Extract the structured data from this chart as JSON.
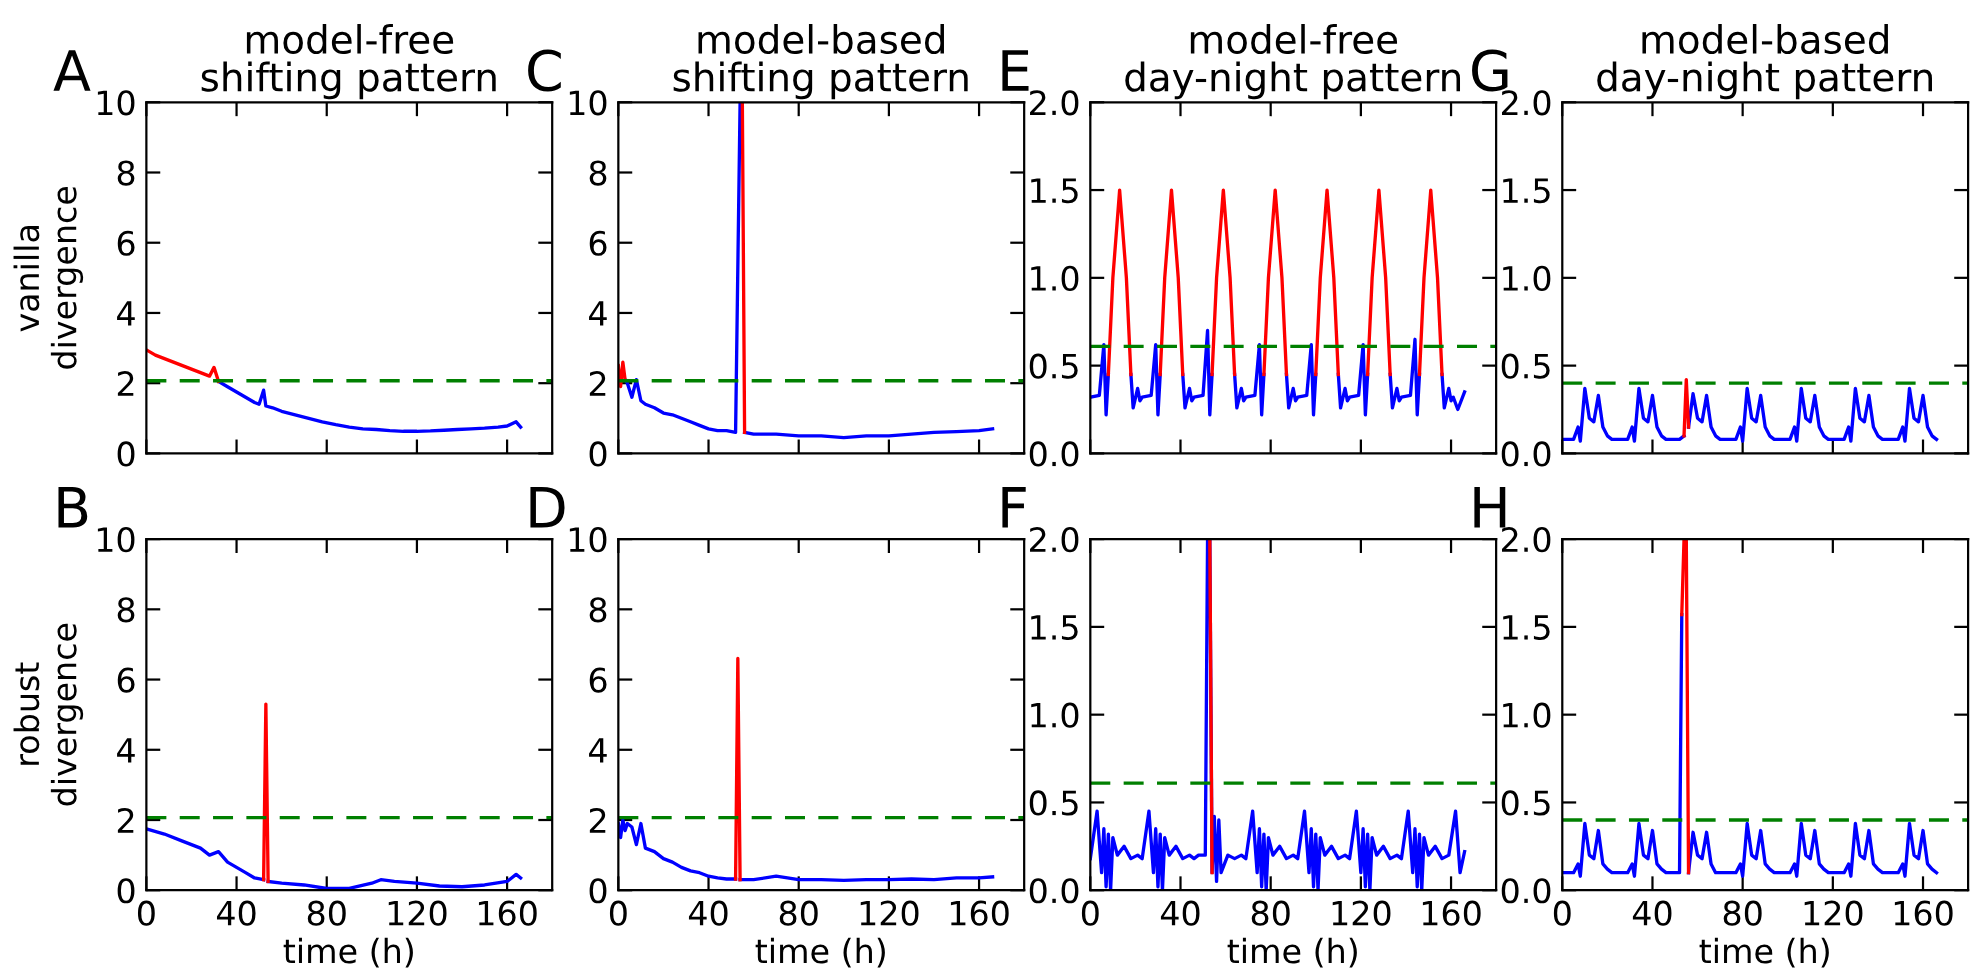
{
  "chart_data": [
    {
      "type": "line",
      "title": "model-free\nshifting pattern",
      "ylabel": "vanilla\ndivergence",
      "annotations": [
        "A"
      ],
      "xlim": [
        0,
        180
      ],
      "xticks": [
        0,
        40,
        80,
        120,
        160
      ],
      "ylim": [
        0,
        10
      ],
      "yticks": [
        0,
        2,
        4,
        6,
        8,
        10
      ],
      "tick_labels": "y",
      "ref_lines": [
        {
          "axis": "y",
          "value": 2.07,
          "color": "#008000",
          "line_style": "dashed"
        }
      ],
      "x": [
        0,
        4,
        8,
        12,
        16,
        20,
        24,
        28,
        30,
        32,
        36,
        40,
        44,
        48,
        50,
        52,
        53,
        56,
        60,
        66,
        72,
        78,
        84,
        90,
        96,
        102,
        108,
        114,
        120,
        126,
        132,
        138,
        144,
        150,
        156,
        160,
        164,
        166
      ],
      "series": [
        {
          "color": "#0000ff",
          "values": [
            null,
            null,
            null,
            null,
            null,
            null,
            null,
            null,
            null,
            2.05,
            1.9,
            1.75,
            1.6,
            1.45,
            1.4,
            1.8,
            1.35,
            1.3,
            1.2,
            1.1,
            1.0,
            0.9,
            0.82,
            0.75,
            0.7,
            0.68,
            0.65,
            0.63,
            0.63,
            0.64,
            0.66,
            0.68,
            0.7,
            0.72,
            0.75,
            0.78,
            0.9,
            0.75
          ]
        },
        {
          "color": "#ff0000",
          "values": [
            2.95,
            2.8,
            2.7,
            2.6,
            2.5,
            2.4,
            2.3,
            2.2,
            2.45,
            2.05,
            null,
            null,
            null,
            null,
            null,
            null,
            null,
            null,
            null,
            null,
            null,
            null,
            null,
            null,
            null,
            null,
            null,
            null,
            null,
            null,
            null,
            null,
            null,
            null,
            null,
            null,
            null,
            null
          ]
        }
      ]
    },
    {
      "type": "line",
      "title": "model-based\nshifting pattern",
      "annotations": [
        "C"
      ],
      "xlim": [
        0,
        180
      ],
      "xticks": [
        0,
        40,
        80,
        120,
        160
      ],
      "ylim": [
        0,
        10
      ],
      "yticks": [
        0,
        2,
        4,
        6,
        8,
        10
      ],
      "tick_labels": "y",
      "ref_lines": [
        {
          "axis": "y",
          "value": 2.07,
          "color": "#008000",
          "line_style": "dashed"
        }
      ],
      "x": [
        0,
        1,
        2,
        3,
        4,
        6,
        8,
        10,
        12,
        16,
        20,
        24,
        28,
        32,
        36,
        40,
        44,
        48,
        52,
        54,
        55,
        56,
        60,
        70,
        80,
        90,
        100,
        110,
        120,
        130,
        140,
        150,
        160,
        166
      ],
      "series": [
        {
          "color": "#0000ff",
          "values": [
            null,
            null,
            null,
            2.1,
            2.0,
            1.6,
            2.1,
            1.5,
            1.4,
            1.3,
            1.15,
            1.1,
            1.0,
            0.9,
            0.8,
            0.7,
            0.65,
            0.65,
            0.6,
            10,
            null,
            0.6,
            0.55,
            0.55,
            0.5,
            0.5,
            0.45,
            0.5,
            0.5,
            0.55,
            0.6,
            0.62,
            0.65,
            0.7
          ]
        },
        {
          "color": "#ff0000",
          "values": [
            2.5,
            1.9,
            2.6,
            2.1,
            null,
            null,
            null,
            null,
            null,
            null,
            null,
            null,
            null,
            null,
            null,
            null,
            null,
            null,
            null,
            null,
            10,
            0.6,
            null,
            null,
            null,
            null,
            null,
            null,
            null,
            null,
            null,
            null,
            null,
            null
          ]
        }
      ]
    },
    {
      "type": "line",
      "title": "model-free\nday-night pattern",
      "annotations": [
        "E"
      ],
      "xlim": [
        0,
        180
      ],
      "xticks": [
        0,
        40,
        80,
        120,
        160
      ],
      "ylim": [
        0,
        2
      ],
      "yticks": [
        {
          "value": 0,
          "label": "0.0"
        },
        {
          "value": 0.5,
          "label": "0.5"
        },
        {
          "value": 1,
          "label": "1.0"
        },
        {
          "value": 1.5,
          "label": "1.5"
        },
        {
          "value": 2,
          "label": "2.0"
        }
      ],
      "tick_labels": "y",
      "ref_lines": [
        {
          "axis": "y",
          "value": 0.61,
          "color": "#008000",
          "line_style": "dashed"
        }
      ],
      "x": [
        0,
        4,
        6,
        7,
        8,
        10,
        13,
        16,
        18,
        19,
        21,
        22,
        23,
        27,
        29,
        30,
        31,
        33,
        36,
        39,
        41,
        42,
        44,
        45,
        46,
        50,
        52,
        53,
        54,
        56,
        59,
        62,
        64,
        65,
        67,
        68,
        69,
        73,
        75,
        76,
        77,
        79,
        82,
        85,
        87,
        88,
        90,
        91,
        92,
        96,
        98,
        99,
        100,
        102,
        105,
        108,
        110,
        111,
        113,
        114,
        115,
        119,
        121,
        122,
        123,
        125,
        128,
        131,
        133,
        134,
        136,
        137,
        138,
        142,
        144,
        145,
        146,
        148,
        151,
        154,
        156,
        157,
        159,
        160,
        161,
        163,
        166
      ],
      "series": [
        {
          "color": "#0000ff",
          "values": [
            0.32,
            0.33,
            0.62,
            0.22,
            0.45,
            null,
            null,
            null,
            0.45,
            0.26,
            0.37,
            0.3,
            0.32,
            0.33,
            0.62,
            0.22,
            0.45,
            null,
            null,
            null,
            0.45,
            0.26,
            0.37,
            0.3,
            0.32,
            0.33,
            0.7,
            0.22,
            0.45,
            null,
            null,
            null,
            0.45,
            0.26,
            0.37,
            0.3,
            0.32,
            0.33,
            0.62,
            0.22,
            0.45,
            null,
            null,
            null,
            0.45,
            0.26,
            0.37,
            0.3,
            0.32,
            0.33,
            0.62,
            0.22,
            0.45,
            null,
            null,
            null,
            0.45,
            0.26,
            0.37,
            0.3,
            0.32,
            0.33,
            0.62,
            0.22,
            0.45,
            null,
            null,
            null,
            0.45,
            0.26,
            0.37,
            0.3,
            0.32,
            0.33,
            0.65,
            0.22,
            0.45,
            null,
            null,
            null,
            0.45,
            0.26,
            0.37,
            0.3,
            0.32,
            0.25,
            0.35
          ]
        },
        {
          "color": "#ff0000",
          "values": [
            null,
            null,
            null,
            null,
            0.45,
            1.0,
            1.5,
            1.0,
            0.45,
            null,
            null,
            null,
            null,
            null,
            null,
            null,
            0.45,
            1.0,
            1.5,
            1.0,
            0.45,
            null,
            null,
            null,
            null,
            null,
            null,
            null,
            0.45,
            1.0,
            1.5,
            1.0,
            0.45,
            null,
            null,
            null,
            null,
            null,
            null,
            null,
            0.45,
            1.0,
            1.5,
            1.0,
            0.45,
            null,
            null,
            null,
            null,
            null,
            null,
            null,
            0.45,
            1.0,
            1.5,
            1.0,
            0.45,
            null,
            null,
            null,
            null,
            null,
            null,
            null,
            0.45,
            1.0,
            1.5,
            1.0,
            0.45,
            null,
            null,
            null,
            null,
            null,
            null,
            null,
            0.45,
            1.0,
            1.5,
            1.0,
            0.45,
            null,
            null,
            null,
            null,
            null,
            null
          ]
        }
      ]
    },
    {
      "type": "line",
      "title": "model-based\nday-night pattern",
      "annotations": [
        "G"
      ],
      "xlim": [
        0,
        180
      ],
      "xticks": [
        0,
        40,
        80,
        120,
        160
      ],
      "ylim": [
        0,
        2
      ],
      "yticks": [
        {
          "value": 0,
          "label": "0.0"
        },
        {
          "value": 0.5,
          "label": "0.5"
        },
        {
          "value": 1,
          "label": "1.0"
        },
        {
          "value": 1.5,
          "label": "1.5"
        },
        {
          "value": 2,
          "label": "2.0"
        }
      ],
      "tick_labels": "y",
      "ref_lines": [
        {
          "axis": "y",
          "value": 0.4,
          "color": "#008000",
          "line_style": "dashed"
        }
      ],
      "x": [
        0,
        5,
        7,
        8,
        10,
        12,
        14,
        16,
        18,
        20,
        22,
        24,
        29,
        31,
        32,
        34,
        36,
        38,
        40,
        42,
        44,
        46,
        48,
        52,
        54,
        55,
        56,
        58,
        60,
        62,
        64,
        66,
        68,
        70,
        72,
        77,
        79,
        80,
        82,
        84,
        86,
        88,
        90,
        92,
        94,
        96,
        101,
        103,
        104,
        106,
        108,
        110,
        112,
        114,
        116,
        118,
        120,
        125,
        127,
        128,
        130,
        132,
        134,
        136,
        138,
        140,
        142,
        144,
        149,
        151,
        152,
        154,
        156,
        158,
        160,
        162,
        164,
        166
      ],
      "series": [
        {
          "color": "#0000ff",
          "values": [
            0.08,
            0.08,
            0.15,
            0.07,
            0.37,
            0.2,
            0.18,
            0.33,
            0.15,
            0.1,
            0.08,
            0.08,
            0.08,
            0.15,
            0.07,
            0.37,
            0.2,
            0.18,
            0.33,
            0.15,
            0.1,
            0.08,
            0.08,
            0.08,
            0.1,
            null,
            0.15,
            0.34,
            0.2,
            0.18,
            0.33,
            0.15,
            0.1,
            0.08,
            0.08,
            0.08,
            0.15,
            0.07,
            0.37,
            0.2,
            0.18,
            0.33,
            0.15,
            0.1,
            0.08,
            0.08,
            0.08,
            0.15,
            0.07,
            0.37,
            0.2,
            0.18,
            0.33,
            0.15,
            0.1,
            0.08,
            0.08,
            0.08,
            0.15,
            0.07,
            0.37,
            0.2,
            0.18,
            0.33,
            0.15,
            0.1,
            0.08,
            0.08,
            0.08,
            0.15,
            0.07,
            0.37,
            0.2,
            0.18,
            0.33,
            0.15,
            0.1,
            0.08
          ]
        },
        {
          "color": "#ff0000",
          "values": [
            null,
            null,
            null,
            null,
            null,
            null,
            null,
            null,
            null,
            null,
            null,
            null,
            null,
            null,
            null,
            null,
            null,
            null,
            null,
            null,
            null,
            null,
            null,
            null,
            0.1,
            0.42,
            0.15,
            null,
            null,
            null,
            null,
            null,
            null,
            null,
            null,
            null,
            null,
            null,
            null,
            null,
            null,
            null,
            null,
            null,
            null,
            null,
            null,
            null,
            null,
            null,
            null,
            null,
            null,
            null,
            null,
            null,
            null,
            null,
            null,
            null,
            null,
            null,
            null,
            null,
            null,
            null,
            null,
            null,
            null,
            null,
            null,
            null,
            null,
            null,
            null,
            null,
            null,
            null
          ]
        }
      ]
    },
    {
      "type": "line",
      "ylabel": "robust\ndivergence",
      "xlabel": "time (h)",
      "annotations": [
        "B"
      ],
      "xlim": [
        0,
        180
      ],
      "xticks": [
        0,
        40,
        80,
        120,
        160
      ],
      "ylim": [
        0,
        10
      ],
      "yticks": [
        0,
        2,
        4,
        6,
        8,
        10
      ],
      "ref_lines": [
        {
          "axis": "y",
          "value": 2.07,
          "color": "#008000",
          "line_style": "dashed"
        }
      ],
      "x": [
        0,
        8,
        16,
        20,
        24,
        28,
        32,
        36,
        40,
        44,
        48,
        52,
        53,
        54,
        60,
        70,
        80,
        90,
        100,
        104,
        110,
        120,
        130,
        140,
        150,
        160,
        164,
        166
      ],
      "series": [
        {
          "color": "#0000ff",
          "values": [
            1.75,
            1.6,
            1.4,
            1.3,
            1.2,
            1.0,
            1.1,
            0.8,
            0.65,
            0.5,
            0.35,
            0.3,
            null,
            0.25,
            0.2,
            0.15,
            0.05,
            0.05,
            0.2,
            0.3,
            0.25,
            0.2,
            0.12,
            0.1,
            0.15,
            0.25,
            0.45,
            0.35
          ]
        },
        {
          "color": "#ff0000",
          "values": [
            null,
            null,
            null,
            null,
            null,
            null,
            null,
            null,
            null,
            null,
            null,
            0.3,
            5.3,
            0.25,
            null,
            null,
            null,
            null,
            null,
            null,
            null,
            null,
            null,
            null,
            null,
            null,
            null,
            null
          ]
        }
      ]
    },
    {
      "type": "line",
      "xlabel": "time (h)",
      "annotations": [
        "D"
      ],
      "xlim": [
        0,
        180
      ],
      "xticks": [
        0,
        40,
        80,
        120,
        160
      ],
      "ylim": [
        0,
        10
      ],
      "yticks": [
        0,
        2,
        4,
        6,
        8,
        10
      ],
      "ref_lines": [
        {
          "axis": "y",
          "value": 2.07,
          "color": "#008000",
          "line_style": "dashed"
        }
      ],
      "x": [
        0,
        1,
        2,
        3,
        4,
        6,
        8,
        10,
        12,
        16,
        20,
        24,
        28,
        32,
        36,
        40,
        44,
        48,
        52,
        53,
        54,
        60,
        70,
        80,
        90,
        100,
        110,
        120,
        130,
        140,
        150,
        160,
        166
      ],
      "series": [
        {
          "color": "#0000ff",
          "values": [
            1.9,
            1.5,
            2.0,
            1.7,
            1.9,
            1.8,
            1.3,
            1.9,
            1.2,
            1.1,
            0.9,
            0.8,
            0.65,
            0.55,
            0.5,
            0.4,
            0.35,
            0.32,
            0.32,
            null,
            0.3,
            0.3,
            0.4,
            0.3,
            0.3,
            0.28,
            0.3,
            0.3,
            0.32,
            0.3,
            0.35,
            0.35,
            0.38
          ]
        },
        {
          "color": "#ff0000",
          "values": [
            null,
            null,
            null,
            null,
            null,
            null,
            null,
            null,
            null,
            null,
            null,
            null,
            null,
            null,
            null,
            null,
            null,
            null,
            0.32,
            6.6,
            0.3,
            null,
            null,
            null,
            null,
            null,
            null,
            null,
            null,
            null,
            null,
            null,
            null
          ]
        }
      ]
    },
    {
      "type": "line",
      "xlabel": "time (h)",
      "annotations": [
        "F"
      ],
      "xlim": [
        0,
        180
      ],
      "xticks": [
        0,
        40,
        80,
        120,
        160
      ],
      "ylim": [
        0,
        2
      ],
      "yticks": [
        {
          "value": 0,
          "label": "0.0"
        },
        {
          "value": 0.5,
          "label": "0.5"
        },
        {
          "value": 1,
          "label": "1.0"
        },
        {
          "value": 1.5,
          "label": "1.5"
        },
        {
          "value": 2,
          "label": "2.0"
        }
      ],
      "ref_lines": [
        {
          "axis": "y",
          "value": 0.61,
          "color": "#008000",
          "line_style": "dashed"
        }
      ],
      "x": [
        0,
        3,
        5,
        6,
        7,
        8,
        9,
        10,
        12,
        15,
        18,
        21,
        23,
        26,
        28,
        29,
        30,
        31,
        32,
        33,
        35,
        38,
        41,
        44,
        46,
        48,
        51,
        52,
        53,
        54,
        55,
        56,
        57,
        58,
        61,
        64,
        67,
        69,
        72,
        74,
        75,
        76,
        77,
        78,
        79,
        81,
        84,
        87,
        90,
        92,
        95,
        97,
        98,
        99,
        100,
        101,
        102,
        104,
        107,
        110,
        113,
        115,
        118,
        120,
        121,
        122,
        123,
        124,
        125,
        127,
        130,
        133,
        136,
        138,
        141,
        143,
        144,
        145,
        146,
        147,
        148,
        150,
        153,
        156,
        159,
        162,
        164,
        166
      ],
      "series": [
        {
          "color": "#0000ff",
          "values": [
            0.18,
            0.45,
            0.1,
            0.35,
            0.02,
            0.32,
            0.0,
            0.3,
            0.2,
            0.25,
            0.18,
            0.2,
            0.18,
            0.45,
            0.1,
            0.35,
            0.02,
            0.32,
            0.0,
            0.3,
            0.2,
            0.25,
            0.18,
            0.2,
            0.18,
            0.2,
            0.2,
            2.0,
            2.0,
            0.1,
            0.42,
            0.05,
            0.4,
            0.1,
            0.2,
            0.18,
            0.2,
            0.18,
            0.45,
            0.1,
            0.35,
            0.02,
            0.32,
            0.0,
            0.3,
            0.2,
            0.25,
            0.18,
            0.2,
            0.18,
            0.45,
            0.1,
            0.35,
            0.02,
            0.32,
            0.0,
            0.3,
            0.2,
            0.25,
            0.18,
            0.2,
            0.18,
            0.45,
            0.1,
            0.35,
            0.02,
            0.32,
            0.0,
            0.3,
            0.2,
            0.25,
            0.18,
            0.2,
            0.18,
            0.45,
            0.1,
            0.35,
            0.02,
            0.32,
            0.0,
            0.3,
            0.2,
            0.25,
            0.18,
            0.2,
            0.45,
            0.1,
            0.22
          ]
        },
        {
          "color": "#ff0000",
          "values": [
            null,
            null,
            null,
            null,
            null,
            null,
            null,
            null,
            null,
            null,
            null,
            null,
            null,
            null,
            null,
            null,
            null,
            null,
            null,
            null,
            null,
            null,
            null,
            null,
            null,
            null,
            null,
            null,
            2.0,
            0.1,
            null,
            null,
            null,
            null,
            null,
            null,
            null,
            null,
            null,
            null,
            null,
            null,
            null,
            null,
            null,
            null,
            null,
            null,
            null,
            null,
            null,
            null,
            null,
            null,
            null,
            null,
            null,
            null,
            null,
            null,
            null,
            null,
            null,
            null,
            null,
            null,
            null,
            null,
            null,
            null,
            null,
            null,
            null,
            null,
            null,
            null,
            null,
            null,
            null,
            null,
            null,
            null,
            null,
            null,
            null,
            null,
            null,
            null
          ]
        }
      ]
    },
    {
      "type": "line",
      "xlabel": "time (h)",
      "annotations": [
        "H"
      ],
      "xlim": [
        0,
        180
      ],
      "xticks": [
        0,
        40,
        80,
        120,
        160
      ],
      "ylim": [
        0,
        2
      ],
      "yticks": [
        {
          "value": 0,
          "label": "0.0"
        },
        {
          "value": 0.5,
          "label": "0.5"
        },
        {
          "value": 1,
          "label": "1.0"
        },
        {
          "value": 1.5,
          "label": "1.5"
        },
        {
          "value": 2,
          "label": "2.0"
        }
      ],
      "ref_lines": [
        {
          "axis": "y",
          "value": 0.4,
          "color": "#008000",
          "line_style": "dashed"
        }
      ],
      "x": [
        0,
        5,
        7,
        8,
        10,
        12,
        14,
        16,
        18,
        20,
        22,
        24,
        29,
        31,
        32,
        34,
        36,
        38,
        40,
        42,
        44,
        46,
        48,
        52,
        53,
        54,
        55,
        56,
        58,
        60,
        62,
        64,
        66,
        68,
        70,
        72,
        77,
        79,
        80,
        82,
        84,
        86,
        88,
        90,
        92,
        94,
        96,
        101,
        103,
        104,
        106,
        108,
        110,
        112,
        114,
        116,
        118,
        120,
        125,
        127,
        128,
        130,
        132,
        134,
        136,
        138,
        140,
        142,
        144,
        149,
        151,
        152,
        154,
        156,
        158,
        160,
        162,
        164,
        166
      ],
      "series": [
        {
          "color": "#0000ff",
          "values": [
            0.1,
            0.1,
            0.15,
            0.08,
            0.38,
            0.2,
            0.18,
            0.34,
            0.15,
            0.12,
            0.1,
            0.1,
            0.1,
            0.15,
            0.08,
            0.38,
            0.2,
            0.18,
            0.34,
            0.15,
            0.12,
            0.1,
            0.1,
            0.1,
            1.57,
            null,
            null,
            0.1,
            0.33,
            0.2,
            0.18,
            0.33,
            0.15,
            0.1,
            0.1,
            0.1,
            0.1,
            0.15,
            0.08,
            0.38,
            0.2,
            0.18,
            0.34,
            0.15,
            0.12,
            0.1,
            0.1,
            0.1,
            0.15,
            0.08,
            0.38,
            0.2,
            0.18,
            0.34,
            0.15,
            0.12,
            0.1,
            0.1,
            0.1,
            0.15,
            0.08,
            0.38,
            0.2,
            0.18,
            0.34,
            0.15,
            0.12,
            0.1,
            0.1,
            0.1,
            0.15,
            0.08,
            0.38,
            0.2,
            0.18,
            0.34,
            0.15,
            0.12,
            0.1
          ]
        },
        {
          "color": "#ff0000",
          "values": [
            null,
            null,
            null,
            null,
            null,
            null,
            null,
            null,
            null,
            null,
            null,
            null,
            null,
            null,
            null,
            null,
            null,
            null,
            null,
            null,
            null,
            null,
            null,
            null,
            1.57,
            2.0,
            2.0,
            0.1,
            null,
            null,
            null,
            null,
            null,
            null,
            null,
            null,
            null,
            null,
            null,
            null,
            null,
            null,
            null,
            null,
            null,
            null,
            null,
            null,
            null,
            null,
            null,
            null,
            null,
            null,
            null,
            null,
            null,
            null,
            null,
            null,
            null,
            null,
            null,
            null,
            null,
            null,
            null,
            null,
            null,
            null,
            null,
            null,
            null,
            null,
            null,
            null,
            null,
            null,
            null
          ]
        }
      ]
    }
  ]
}
